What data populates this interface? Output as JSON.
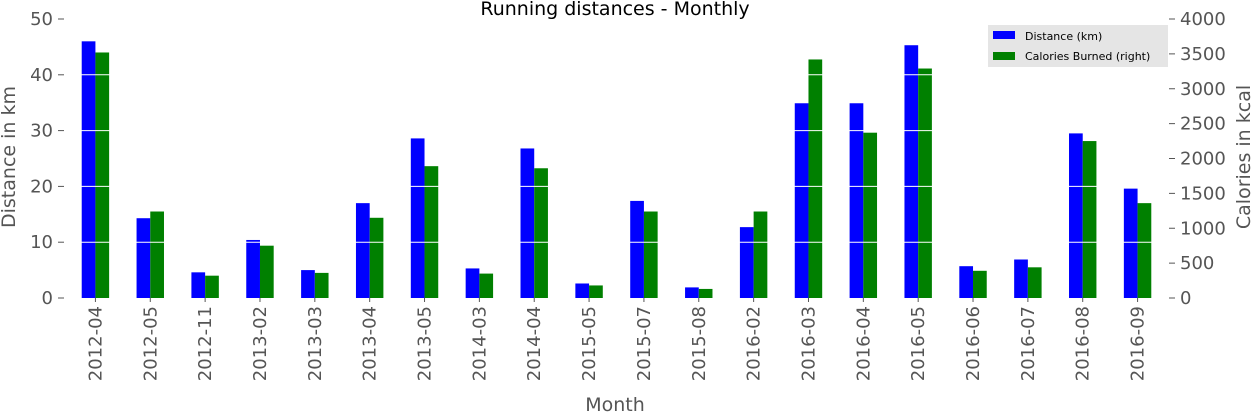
{
  "chart_data": {
    "type": "bar",
    "title": "Running distances - Monthly",
    "xlabel": "Month",
    "ylabel": "Distance in km",
    "ylabel_right": "Calories in kcal",
    "ylim": [
      0,
      50
    ],
    "ylim_right": [
      0,
      4000
    ],
    "yticks": [
      "0",
      "10",
      "20",
      "30",
      "40",
      "50"
    ],
    "yticks_right": [
      "0",
      "500",
      "1000",
      "1500",
      "2000",
      "2500",
      "3000",
      "3500",
      "4000"
    ],
    "grid": true,
    "legend_position": "top-right",
    "categories": [
      "2012-04",
      "2012-05",
      "2012-11",
      "2013-02",
      "2013-03",
      "2013-04",
      "2013-05",
      "2014-03",
      "2014-04",
      "2015-05",
      "2015-07",
      "2015-08",
      "2016-02",
      "2016-03",
      "2016-04",
      "2016-05",
      "2016-06",
      "2016-07",
      "2016-08",
      "2016-09"
    ],
    "series": [
      {
        "name": "Distance (km)",
        "axis": "left",
        "color": "#0000ff",
        "values": [
          46.0,
          14.3,
          4.6,
          10.4,
          5.0,
          17.0,
          28.6,
          5.3,
          26.8,
          2.6,
          17.4,
          1.9,
          12.7,
          34.9,
          34.9,
          45.3,
          5.7,
          6.9,
          29.5,
          19.6
        ]
      },
      {
        "name": "Calories Burned (right)",
        "axis": "right",
        "color": "#008000",
        "values": [
          3520,
          1240,
          320,
          750,
          360,
          1150,
          1890,
          350,
          1860,
          180,
          1240,
          130,
          1240,
          3420,
          2370,
          3290,
          390,
          440,
          2250,
          1360
        ]
      }
    ]
  }
}
